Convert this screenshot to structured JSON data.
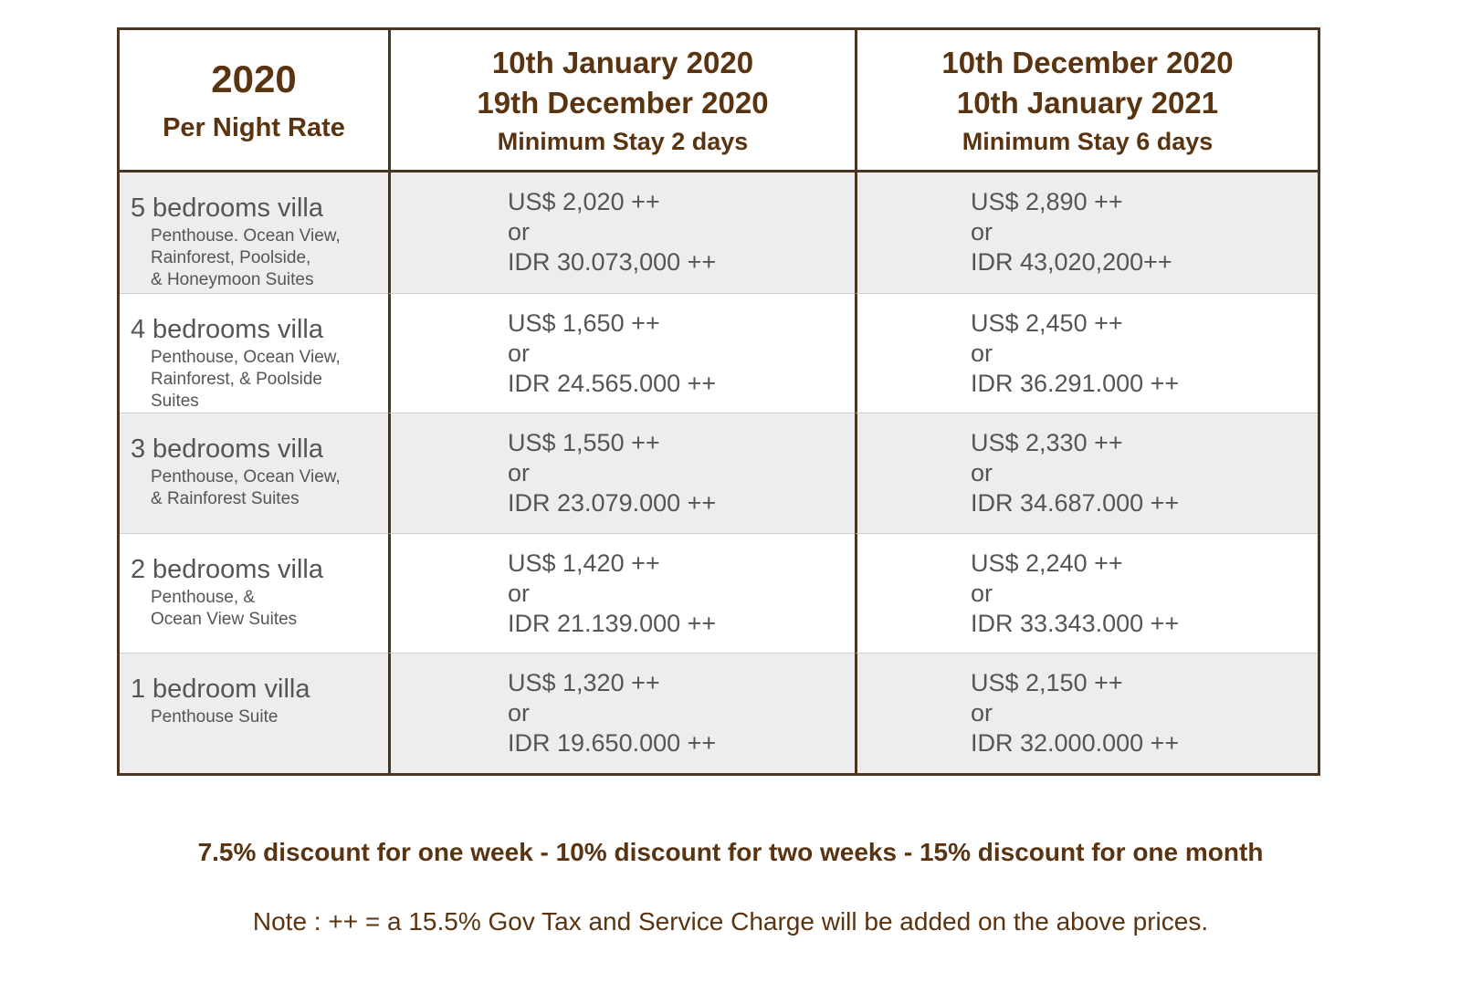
{
  "header": {
    "year": "2020",
    "rate_label": "Per Night Rate",
    "season1": {
      "date_from": "10th January 2020",
      "date_to": "19th December 2020",
      "min_stay": "Minimum Stay 2 days"
    },
    "season2": {
      "date_from": "10th December 2020",
      "date_to": "10th January 2021",
      "min_stay": "Minimum Stay 6 days"
    }
  },
  "rows": [
    {
      "num": "5",
      "name": "bedrooms villa",
      "desc": "Penthouse.  Ocean View,\nRainforest,  Poolside,\n& Honeymoon Suites",
      "s1_usd": "US$ 2,020 ++",
      "s1_or": "or",
      "s1_idr": "IDR 30.073,000 ++",
      "s2_usd": "US$ 2,890 ++",
      "s2_or": "or",
      "s2_idr": "IDR 43,020,200++"
    },
    {
      "num": "4",
      "name": "bedrooms villa",
      "desc": "Penthouse,  Ocean View,\nRainforest,  &  Poolside\nSuites",
      "s1_usd": "US$ 1,650 ++",
      "s1_or": "or",
      "s1_idr": "IDR 24.565.000 ++",
      "s2_usd": "US$ 2,450 ++",
      "s2_or": "or",
      "s2_idr": "IDR 36.291.000 ++"
    },
    {
      "num": "3",
      "name": "bedrooms villa",
      "desc": "Penthouse,  Ocean View,\n& Rainforest Suites",
      "s1_usd": "US$ 1,550 ++",
      "s1_or": "or",
      "s1_idr": "IDR 23.079.000 ++",
      "s2_usd": "US$ 2,330 ++",
      "s2_or": "or",
      "s2_idr": "IDR 34.687.000 ++"
    },
    {
      "num": "2",
      "name": "bedrooms villa",
      "desc": "Penthouse,  &\nOcean View Suites",
      "s1_usd": "US$ 1,420 ++",
      "s1_or": "or",
      "s1_idr": "IDR 21.139.000 ++",
      "s2_usd": "US$ 2,240 ++",
      "s2_or": "or",
      "s2_idr": "IDR 33.343.000 ++"
    },
    {
      "num": "1",
      "name": "bedroom   villa",
      "desc": "Penthouse Suite",
      "s1_usd": "US$ 1,320 ++",
      "s1_or": "or",
      "s1_idr": "IDR 19.650.000 ++",
      "s2_usd": "US$ 2,150 ++",
      "s2_or": "or",
      "s2_idr": "IDR 32.000.000 ++"
    }
  ],
  "footer": {
    "discount": "7.5% discount for one week  - 10% discount for two weeks - 15% discount for one month",
    "note": "Note :  ++  =  a 15.5% Gov Tax and Service Charge  will be added on the above prices."
  },
  "colors": {
    "border": "#4a3620",
    "heading_text": "#5a3410",
    "body_text": "#555555",
    "row_shade": "#ededed"
  }
}
